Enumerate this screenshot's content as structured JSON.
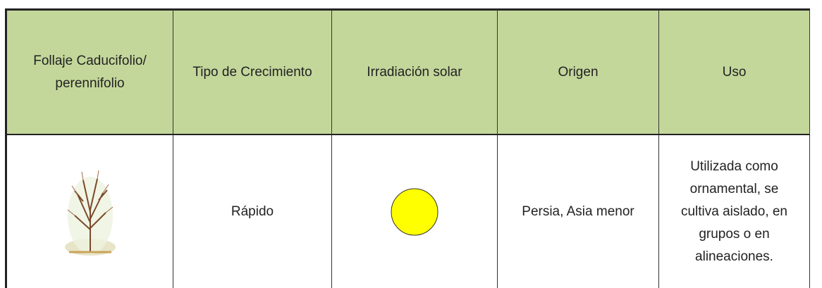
{
  "table": {
    "header": [
      "Follaje Caducifolio/ perennifolio",
      "Tipo de Crecimiento",
      "Irradiación solar",
      "Origen",
      "Uso"
    ],
    "rows": [
      [
        "",
        "Rápido",
        "",
        "Persia, Asia menor",
        [
          "Utilizada como",
          "ornamental, se",
          "cultiva aislado, en",
          "grupos o en",
          "alineaciones."
        ]
      ]
    ]
  }
}
